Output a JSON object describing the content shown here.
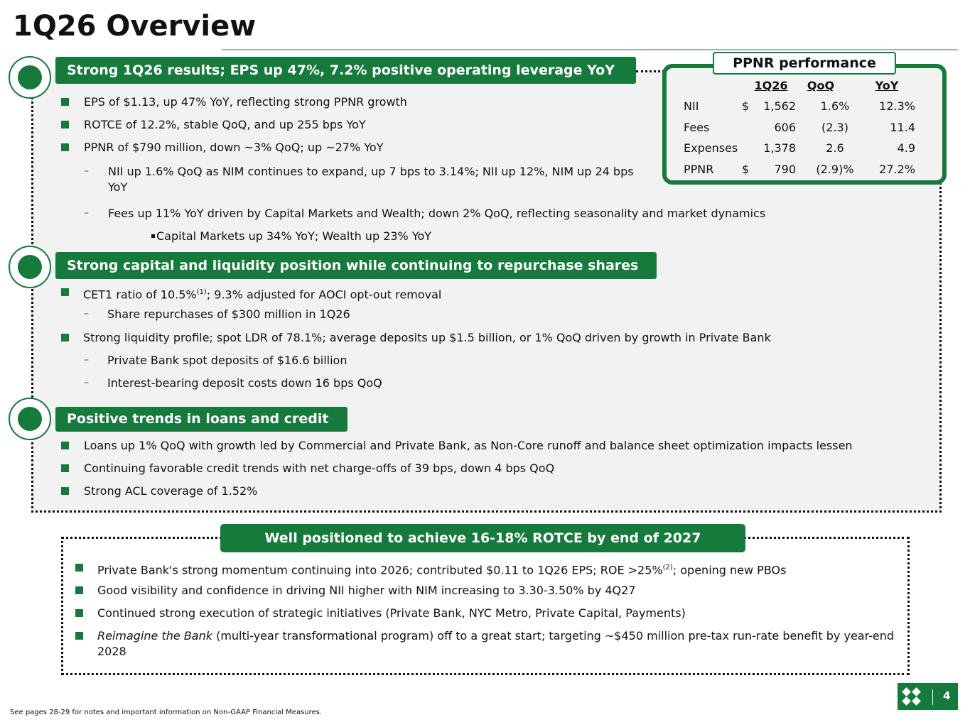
{
  "header": {
    "title": "1Q26 Overview"
  },
  "sections": [
    {
      "heading": "Strong 1Q26 results; EPS up 47%, 7.2% positive operating leverage YoY",
      "items": [
        "EPS of $1.13, up 47% YoY, reflecting strong PPNR growth",
        "ROTCE of 12.2%, stable QoQ, and up 255 bps YoY",
        "PPNR of $790 million, down ~3% QoQ; up ~27% YoY",
        "NII up 1.6% QoQ as NIM continues to expand, up 7 bps to 3.14%; NII up 12%, NIM up 24 bps YoY",
        "Fees up 11% YoY driven by Capital Markets and Wealth; down 2% QoQ, reflecting seasonality and market dynamics",
        "Capital Markets up 34% YoY; Wealth up 23% YoY"
      ]
    },
    {
      "heading": "Strong capital and liquidity position while continuing to repurchase shares",
      "items": [
        {
          "before": "CET1 ratio of 10.5%",
          "note": "(1)",
          "after": "; 9.3% adjusted for AOCI opt-out removal"
        },
        "Share repurchases of $300 million in 1Q26",
        "Strong liquidity profile; spot LDR of 78.1%; average deposits up $1.5 billion, or 1% QoQ driven by growth in Private Bank",
        "Private Bank spot deposits of $16.6 billion",
        "Interest-bearing deposit costs down 16 bps QoQ"
      ]
    },
    {
      "heading": "Positive trends in loans and credit",
      "items": [
        "Loans up 1% QoQ with growth led by Commercial and Private Bank, as Non-Core runoff and balance sheet optimization impacts lessen",
        "Continuing favorable credit trends with net charge-offs of 39 bps, down 4 bps QoQ",
        "Strong ACL coverage of 1.52%"
      ]
    }
  ],
  "ppnr": {
    "title": "PPNR performance",
    "columns": [
      "1Q26",
      "QoQ",
      "YoY"
    ],
    "rows": [
      [
        "NII",
        "$",
        "1,562",
        "1.6%",
        "12.3%"
      ],
      [
        "Fees",
        "",
        "606",
        "(2.3)",
        "11.4"
      ],
      [
        "Expenses",
        "",
        "1,378",
        "2.6",
        "4.9"
      ],
      [
        "PPNR",
        "$",
        "790",
        "(2.9)%",
        "27.2%"
      ]
    ]
  },
  "outlook": {
    "heading": "Well positioned to achieve 16-18% ROTCE by end of 2027",
    "items": [
      {
        "before": "Private Bank's strong momentum continuing into 2026; contributed $0.11 to 1Q26 EPS; ROE >25%",
        "note": "(2)",
        "after": "; opening new PBOs"
      },
      "Good visibility and confidence in driving NII higher with NIM increasing to 3.30-3.50% by 4Q27",
      "Continued strong execution of strategic initiatives (Private Bank, NYC Metro, Private Capital, Payments)",
      {
        "italic": "Reimagine the Bank",
        "after": " (multi-year transformational program) off to a great start; targeting ~$450 million pre-tax run-rate benefit by year-end 2028"
      }
    ]
  },
  "footer": {
    "note": "See pages 28-29 for notes and important information on Non-GAAP Financial Measures.",
    "page": "4"
  }
}
